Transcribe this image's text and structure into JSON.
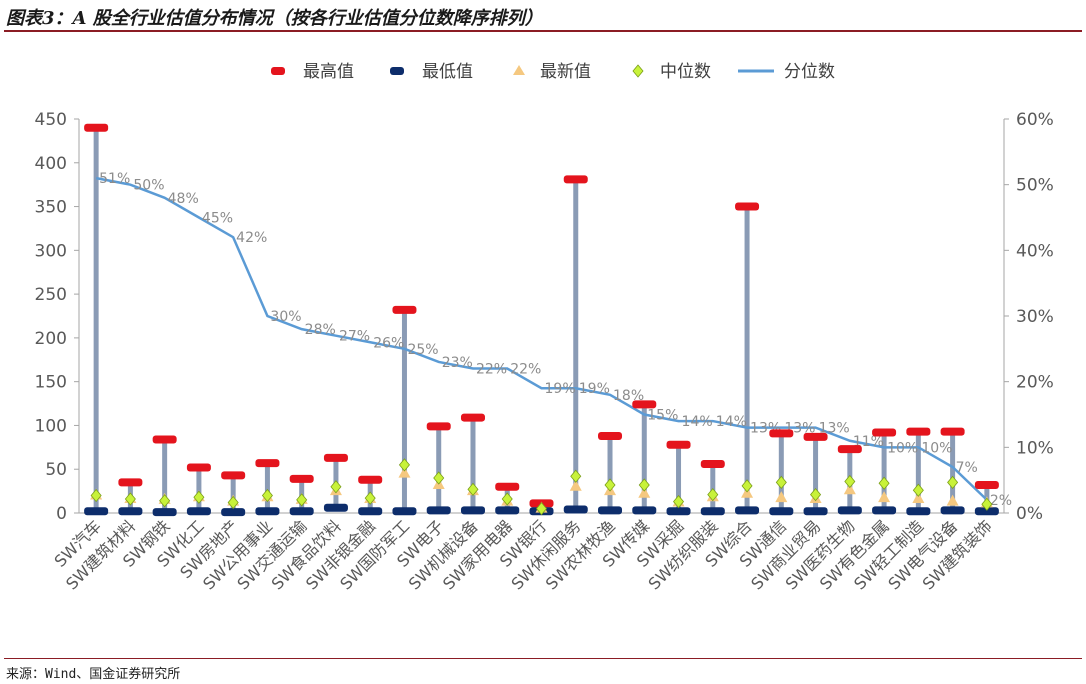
{
  "figure": {
    "title": "图表3：A 股全行业估值分布情况（按各行业估值分位数降序排列）",
    "source": "来源：Wind、国金证券研究所"
  },
  "chart_data": {
    "type": "line",
    "categories": [
      "SW汽车",
      "SW建筑材料",
      "SW钢铁",
      "SW化工",
      "SW房地产",
      "SW公用事业",
      "SW交通运输",
      "SW食品饮料",
      "SW非银金融",
      "SW国防军工",
      "SW电子",
      "SW机械设备",
      "SW家用电器",
      "SW银行",
      "SW休闲服务",
      "SW农林牧渔",
      "SW传媒",
      "SW采掘",
      "SW纺织服装",
      "SW综合",
      "SW通信",
      "SW商业贸易",
      "SW医药生物",
      "SW有色金属",
      "SW轻工制造",
      "SW电气设备",
      "SW建筑装饰"
    ],
    "series": [
      {
        "name": "最高值",
        "marker": "red-bar",
        "axis": "left",
        "values": [
          440,
          35,
          84,
          52,
          43,
          57,
          39,
          63,
          38,
          232,
          99,
          109,
          30,
          11,
          381,
          88,
          124,
          78,
          56,
          350,
          91,
          87,
          73,
          92,
          93,
          93,
          32
        ]
      },
      {
        "name": "最低值",
        "marker": "navy-bar",
        "axis": "left",
        "values": [
          2,
          2,
          1,
          2,
          1,
          2,
          2,
          6,
          2,
          2,
          3,
          3,
          3,
          2,
          4,
          3,
          3,
          2,
          2,
          3,
          2,
          2,
          3,
          3,
          2,
          3,
          2
        ]
      },
      {
        "name": "最新值",
        "marker": "triangle",
        "axis": "left",
        "values": [
          20,
          16,
          15,
          18,
          13,
          18,
          15,
          25,
          16,
          45,
          32,
          25,
          13,
          5,
          30,
          25,
          22,
          12,
          18,
          22,
          17,
          16,
          26,
          17,
          16,
          13,
          11
        ]
      },
      {
        "name": "中位数",
        "marker": "diamond",
        "axis": "left",
        "values": [
          20,
          16,
          14,
          18,
          12,
          20,
          15,
          30,
          17,
          55,
          40,
          27,
          16,
          5,
          42,
          32,
          32,
          13,
          21,
          31,
          35,
          21,
          36,
          34,
          26,
          35,
          10
        ]
      },
      {
        "name": "分位数",
        "marker": "line",
        "axis": "right",
        "values": [
          51,
          50,
          48,
          45,
          42,
          30,
          28,
          27,
          26,
          25,
          23,
          22,
          22,
          19,
          19,
          18,
          15,
          14,
          14,
          13,
          13,
          13,
          11,
          10,
          10,
          7,
          2
        ],
        "labels": [
          "51%",
          "50%",
          "48%",
          "45%",
          "42%",
          "30%",
          "28%",
          "27%",
          "26%",
          "25%",
          "23%",
          "22%",
          "22%",
          "19%",
          "19%",
          "18%",
          "15%",
          "14%",
          "14%",
          "13%",
          "13%",
          "13%",
          "11%",
          "10%",
          "10%",
          "7%",
          "2%"
        ]
      }
    ],
    "y_left": {
      "ylim": [
        0,
        450
      ],
      "ticks": [
        "0",
        "50",
        "100",
        "150",
        "200",
        "250",
        "300",
        "350",
        "400",
        "450"
      ]
    },
    "y_right": {
      "ylim": [
        0,
        60
      ],
      "ticks": [
        "0%",
        "10%",
        "20%",
        "30%",
        "40%",
        "50%",
        "60%"
      ]
    },
    "legend": "top",
    "grid": false,
    "colors": {
      "max": "#e4141d",
      "min": "#0d2d6b",
      "latest": "#f5c880",
      "median": "#c8f23a",
      "median_edge": "#7a9e1a",
      "stem": "#8a9bb5",
      "line": "#5b9bd5",
      "axis": "#a6a6a6"
    }
  }
}
